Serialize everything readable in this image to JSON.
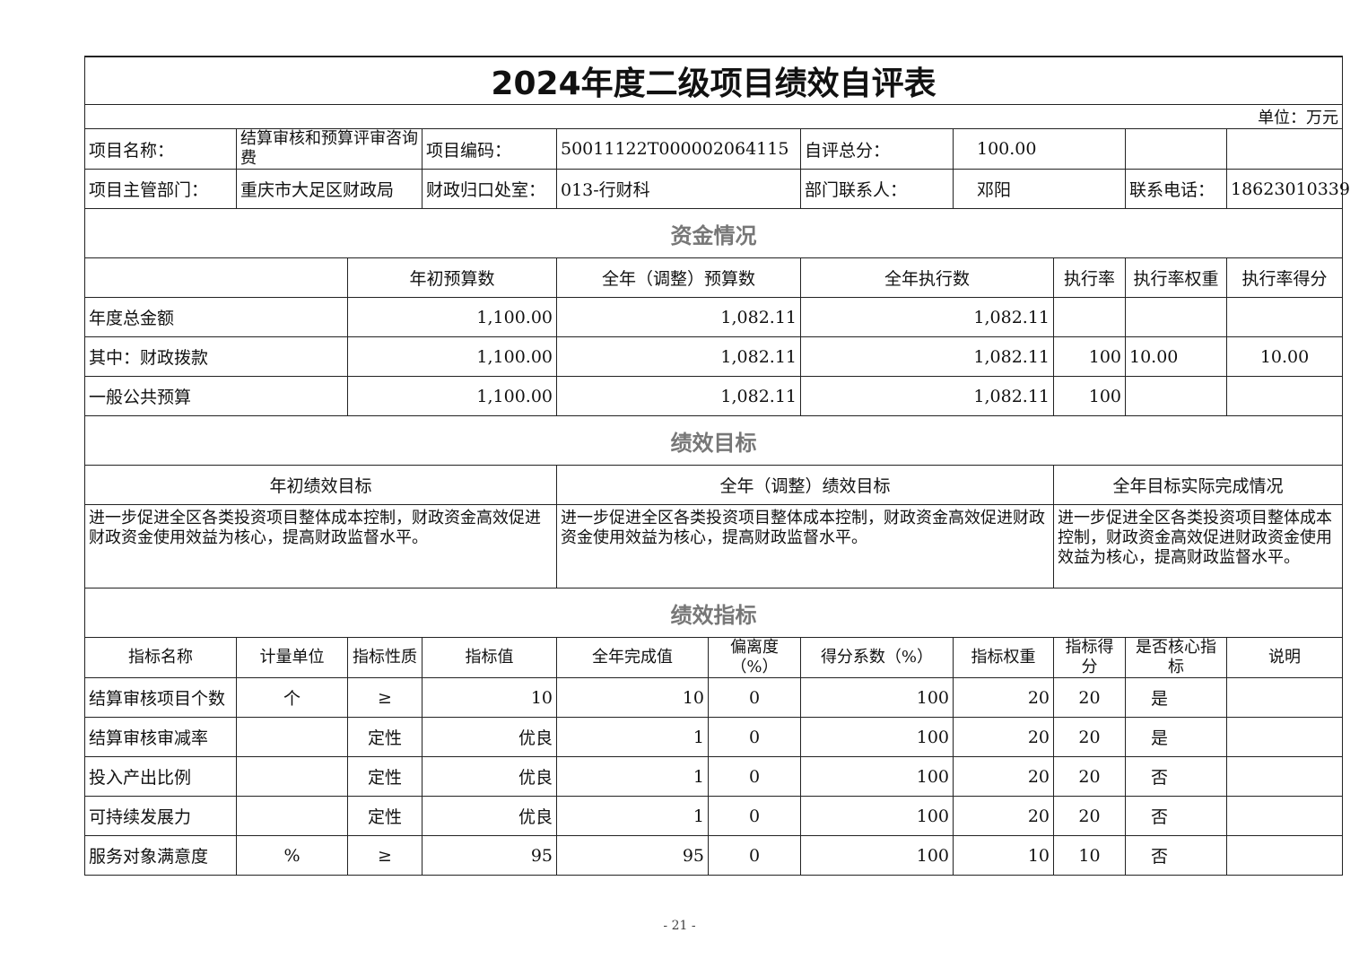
{
  "title": "2024年度二级项目绩效自评表",
  "unit": "单位：万元",
  "info": {
    "project_name_label": "项目名称：",
    "project_name": "结算审核和预算评审咨询费",
    "project_code_label": "项目编码：",
    "project_code": "50011122T000002064115",
    "total_score_label": "自评总分：",
    "total_score": "100.00",
    "dept_label": "项目主管部门：",
    "dept": "重庆市大足区财政局",
    "office_label": "财政归口处室：",
    "office": "013-行财科",
    "contact_label": "部门联系人：",
    "contact": "邓阳",
    "phone_label": "联系电话：",
    "phone": "18623010339"
  },
  "funds": {
    "section": "资金情况",
    "headers": [
      "",
      "年初预算数",
      "全年（调整）预算数",
      "全年执行数",
      "执行率",
      "执行率权重",
      "执行率得分"
    ],
    "rows": [
      [
        "年度总金额",
        "1,100.00",
        "1,082.11",
        "1,082.11",
        "",
        "",
        ""
      ],
      [
        "其中：财政拨款",
        "1,100.00",
        "1,082.11",
        "1,082.11",
        "100",
        "10.00",
        "10.00"
      ],
      [
        "一般公共预算",
        "1,100.00",
        "1,082.11",
        "1,082.11",
        "100",
        "",
        ""
      ]
    ]
  },
  "goals": {
    "section": "绩效目标",
    "headers": [
      "年初绩效目标",
      "全年（调整）绩效目标",
      "全年目标实际完成情况"
    ],
    "values": [
      "进一步促进全区各类投资项目整体成本控制，财政资金高效促进财政资金使用效益为核心，提高财政监督水平。",
      "进一步促进全区各类投资项目整体成本控制，财政资金高效促进财政资金使用效益为核心，提高财政监督水平。",
      "进一步促进全区各类投资项目整体成本控制，财政资金高效促进财政资金使用效益为核心，提高财政监督水平。"
    ]
  },
  "indicators": {
    "section": "绩效指标",
    "headers": [
      "指标名称",
      "计量单位",
      "指标性质",
      "指标值",
      "全年完成值",
      "偏离度（%）",
      "得分系数（%）",
      "指标权重",
      "指标得分",
      "是否核心指标",
      "说明"
    ],
    "rows": [
      [
        "结算审核项目个数",
        "个",
        "≥",
        "10",
        "10",
        "0",
        "100",
        "20",
        "20",
        "是",
        ""
      ],
      [
        "结算审核审减率",
        "",
        "定性",
        "优良",
        "1",
        "0",
        "100",
        "20",
        "20",
        "是",
        ""
      ],
      [
        "投入产出比例",
        "",
        "定性",
        "优良",
        "1",
        "0",
        "100",
        "20",
        "20",
        "否",
        ""
      ],
      [
        "可持续发展力",
        "",
        "定性",
        "优良",
        "1",
        "0",
        "100",
        "20",
        "20",
        "否",
        ""
      ],
      [
        "服务对象满意度",
        "%",
        "≥",
        "95",
        "95",
        "0",
        "100",
        "10",
        "10",
        "否",
        ""
      ]
    ]
  },
  "page_number": "- 21 -"
}
